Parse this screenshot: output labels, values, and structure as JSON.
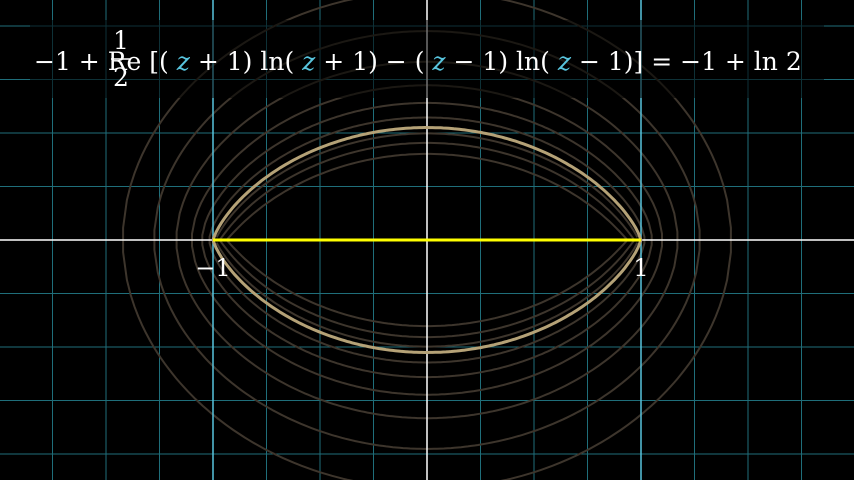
{
  "equation": {
    "before_frac": "−1 + ",
    "frac_num": "1",
    "frac_den": "2",
    "part_a": " Re [(",
    "var_1": "z",
    "part_b": " + 1) ln(",
    "var_2": "z",
    "part_c": " + 1) − (",
    "var_3": "z",
    "part_d": " − 1) ln(",
    "var_4": "z",
    "part_e": " − 1)] = −1 + ln 2"
  },
  "axis_labels": {
    "left": "−1",
    "right": "1"
  },
  "colors": {
    "background": "#000000",
    "grid": "#1f6e7a",
    "axis": "#ffffff",
    "marker_lines": "#58c4dd",
    "contour_highlight": "#b5a277",
    "contour_faint": "#3d352c",
    "segment": "#ffff00",
    "variable": "#58c4dd"
  },
  "contours": {
    "highlight_value": "−1 + ln 2"
  }
}
